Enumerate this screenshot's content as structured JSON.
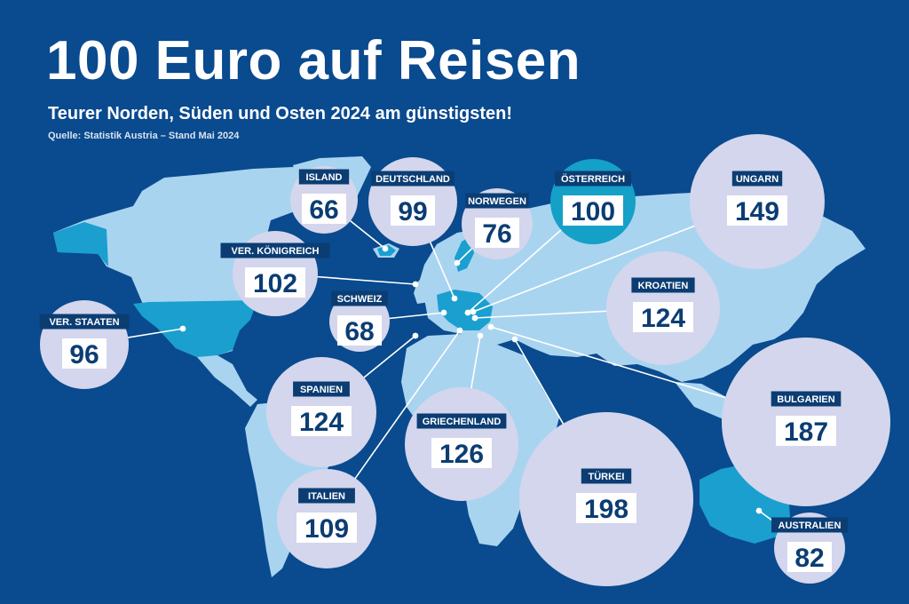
{
  "title": "100 Euro auf Reisen",
  "subtitle": "Teurer Norden, Süden und Osten 2024 am günstigsten!",
  "source": "Quelle: Statistik Austria – Stand Mai 2024",
  "colors": {
    "background": "#0a4a8e",
    "land": "#a9d4f0",
    "land_highlight": "#1a9fcf",
    "bubble": "#d3d6ec",
    "bubble_reference": "#15a0c8",
    "label_box": "#0b3d73",
    "value_text": "#0b3d73",
    "leader_line": "#ffffff"
  },
  "reference_value": 100,
  "countries": [
    {
      "key": "island",
      "name": "ISLAND",
      "value": 66
    },
    {
      "key": "deutschland",
      "name": "DEUTSCHLAND",
      "value": 99
    },
    {
      "key": "norwegen",
      "name": "NORWEGEN",
      "value": 76
    },
    {
      "key": "oesterreich",
      "name": "ÖSTERREICH",
      "value": 100
    },
    {
      "key": "ungarn",
      "name": "UNGARN",
      "value": 149
    },
    {
      "key": "vereinigtes-koenigreich",
      "name": "VER. KÖNIGREICH",
      "value": 102
    },
    {
      "key": "schweiz",
      "name": "SCHWEIZ",
      "value": 68
    },
    {
      "key": "kroatien",
      "name": "KROATIEN",
      "value": 124
    },
    {
      "key": "vereinigte-staaten",
      "name": "VER. STAATEN",
      "value": 96
    },
    {
      "key": "spanien",
      "name": "SPANIEN",
      "value": 124
    },
    {
      "key": "griechenland",
      "name": "GRIECHENLAND",
      "value": 126
    },
    {
      "key": "bulgarien",
      "name": "BULGARIEN",
      "value": 187
    },
    {
      "key": "tuerkei",
      "name": "TÜRKEI",
      "value": 198
    },
    {
      "key": "italien",
      "name": "ITALIEN",
      "value": 109
    },
    {
      "key": "australien",
      "name": "AUSTRALIEN",
      "value": 82
    }
  ]
}
